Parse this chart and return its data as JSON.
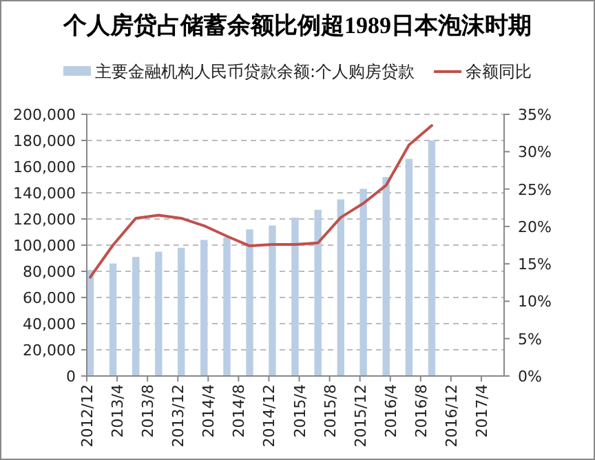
{
  "chart_data": {
    "type": "bar",
    "title": "个人房贷占储蓄余额比例超1989日本泡沫时期",
    "x": [
      "2012-12-15",
      "2013-03-15",
      "2013-06-15",
      "2013-09-15",
      "2013-12-15",
      "2014-03-15",
      "2014-06-15",
      "2014-09-15",
      "2014-12-15",
      "2015-03-15",
      "2015-06-15",
      "2015-09-15",
      "2015-12-15",
      "2016-03-15",
      "2016-06-15",
      "2016-09-15"
    ],
    "series": [
      {
        "name": "主要金融机构人民币贷款余额:个人购房贷款",
        "color": "#b9cde5",
        "values": [
          81000,
          86000,
          91000,
          95000,
          98000,
          104000,
          106000,
          112000,
          115000,
          121000,
          127000,
          135000,
          143000,
          152000,
          166000,
          180000
        ]
      },
      {
        "name": "余额同比",
        "type": "line",
        "axis": "y2",
        "color": "#c0504d",
        "values": [
          13.2,
          17.5,
          21.1,
          21.5,
          21.1,
          20.1,
          18.7,
          17.4,
          17.6,
          17.6,
          17.8,
          21.2,
          23.1,
          25.5,
          30.9,
          33.5
        ]
      }
    ],
    "xlim": [
      "2012-12",
      "2017-07"
    ],
    "xticks": [
      {
        "value": "2012-12",
        "label": "2012/12"
      },
      {
        "value": "2013-04",
        "label": "2013/4"
      },
      {
        "value": "2013-08",
        "label": "2013/8"
      },
      {
        "value": "2013-12",
        "label": "2013/12"
      },
      {
        "value": "2014-04",
        "label": "2014/4"
      },
      {
        "value": "2014-08",
        "label": "2014/8"
      },
      {
        "value": "2014-12",
        "label": "2014/12"
      },
      {
        "value": "2015-04",
        "label": "2015/4"
      },
      {
        "value": "2015-08",
        "label": "2015/8"
      },
      {
        "value": "2015-12",
        "label": "2015/12"
      },
      {
        "value": "2016-04",
        "label": "2016/4"
      },
      {
        "value": "2016-08",
        "label": "2016/8"
      },
      {
        "value": "2016-12",
        "label": "2016/12"
      },
      {
        "value": "2017-04",
        "label": "2017/4"
      }
    ],
    "ylim": [
      0,
      200000
    ],
    "yticks": [
      {
        "value": 0,
        "label": "0"
      },
      {
        "value": 20000,
        "label": "20,000"
      },
      {
        "value": 40000,
        "label": "40,000"
      },
      {
        "value": 60000,
        "label": "60,000"
      },
      {
        "value": 80000,
        "label": "80,000"
      },
      {
        "value": 100000,
        "label": "100,000"
      },
      {
        "value": 120000,
        "label": "120,000"
      },
      {
        "value": 140000,
        "label": "140,000"
      },
      {
        "value": 160000,
        "label": "160,000"
      },
      {
        "value": 180000,
        "label": "180,000"
      },
      {
        "value": 200000,
        "label": "200,000"
      }
    ],
    "y2lim": [
      0,
      35
    ],
    "y2ticks": [
      {
        "value": 0,
        "label": "0%"
      },
      {
        "value": 5,
        "label": "5%"
      },
      {
        "value": 10,
        "label": "10%"
      },
      {
        "value": 15,
        "label": "15%"
      },
      {
        "value": 20,
        "label": "20%"
      },
      {
        "value": 25,
        "label": "25%"
      },
      {
        "value": 30,
        "label": "30%"
      },
      {
        "value": 35,
        "label": "35%"
      }
    ],
    "grid": "y",
    "legend": "top"
  }
}
